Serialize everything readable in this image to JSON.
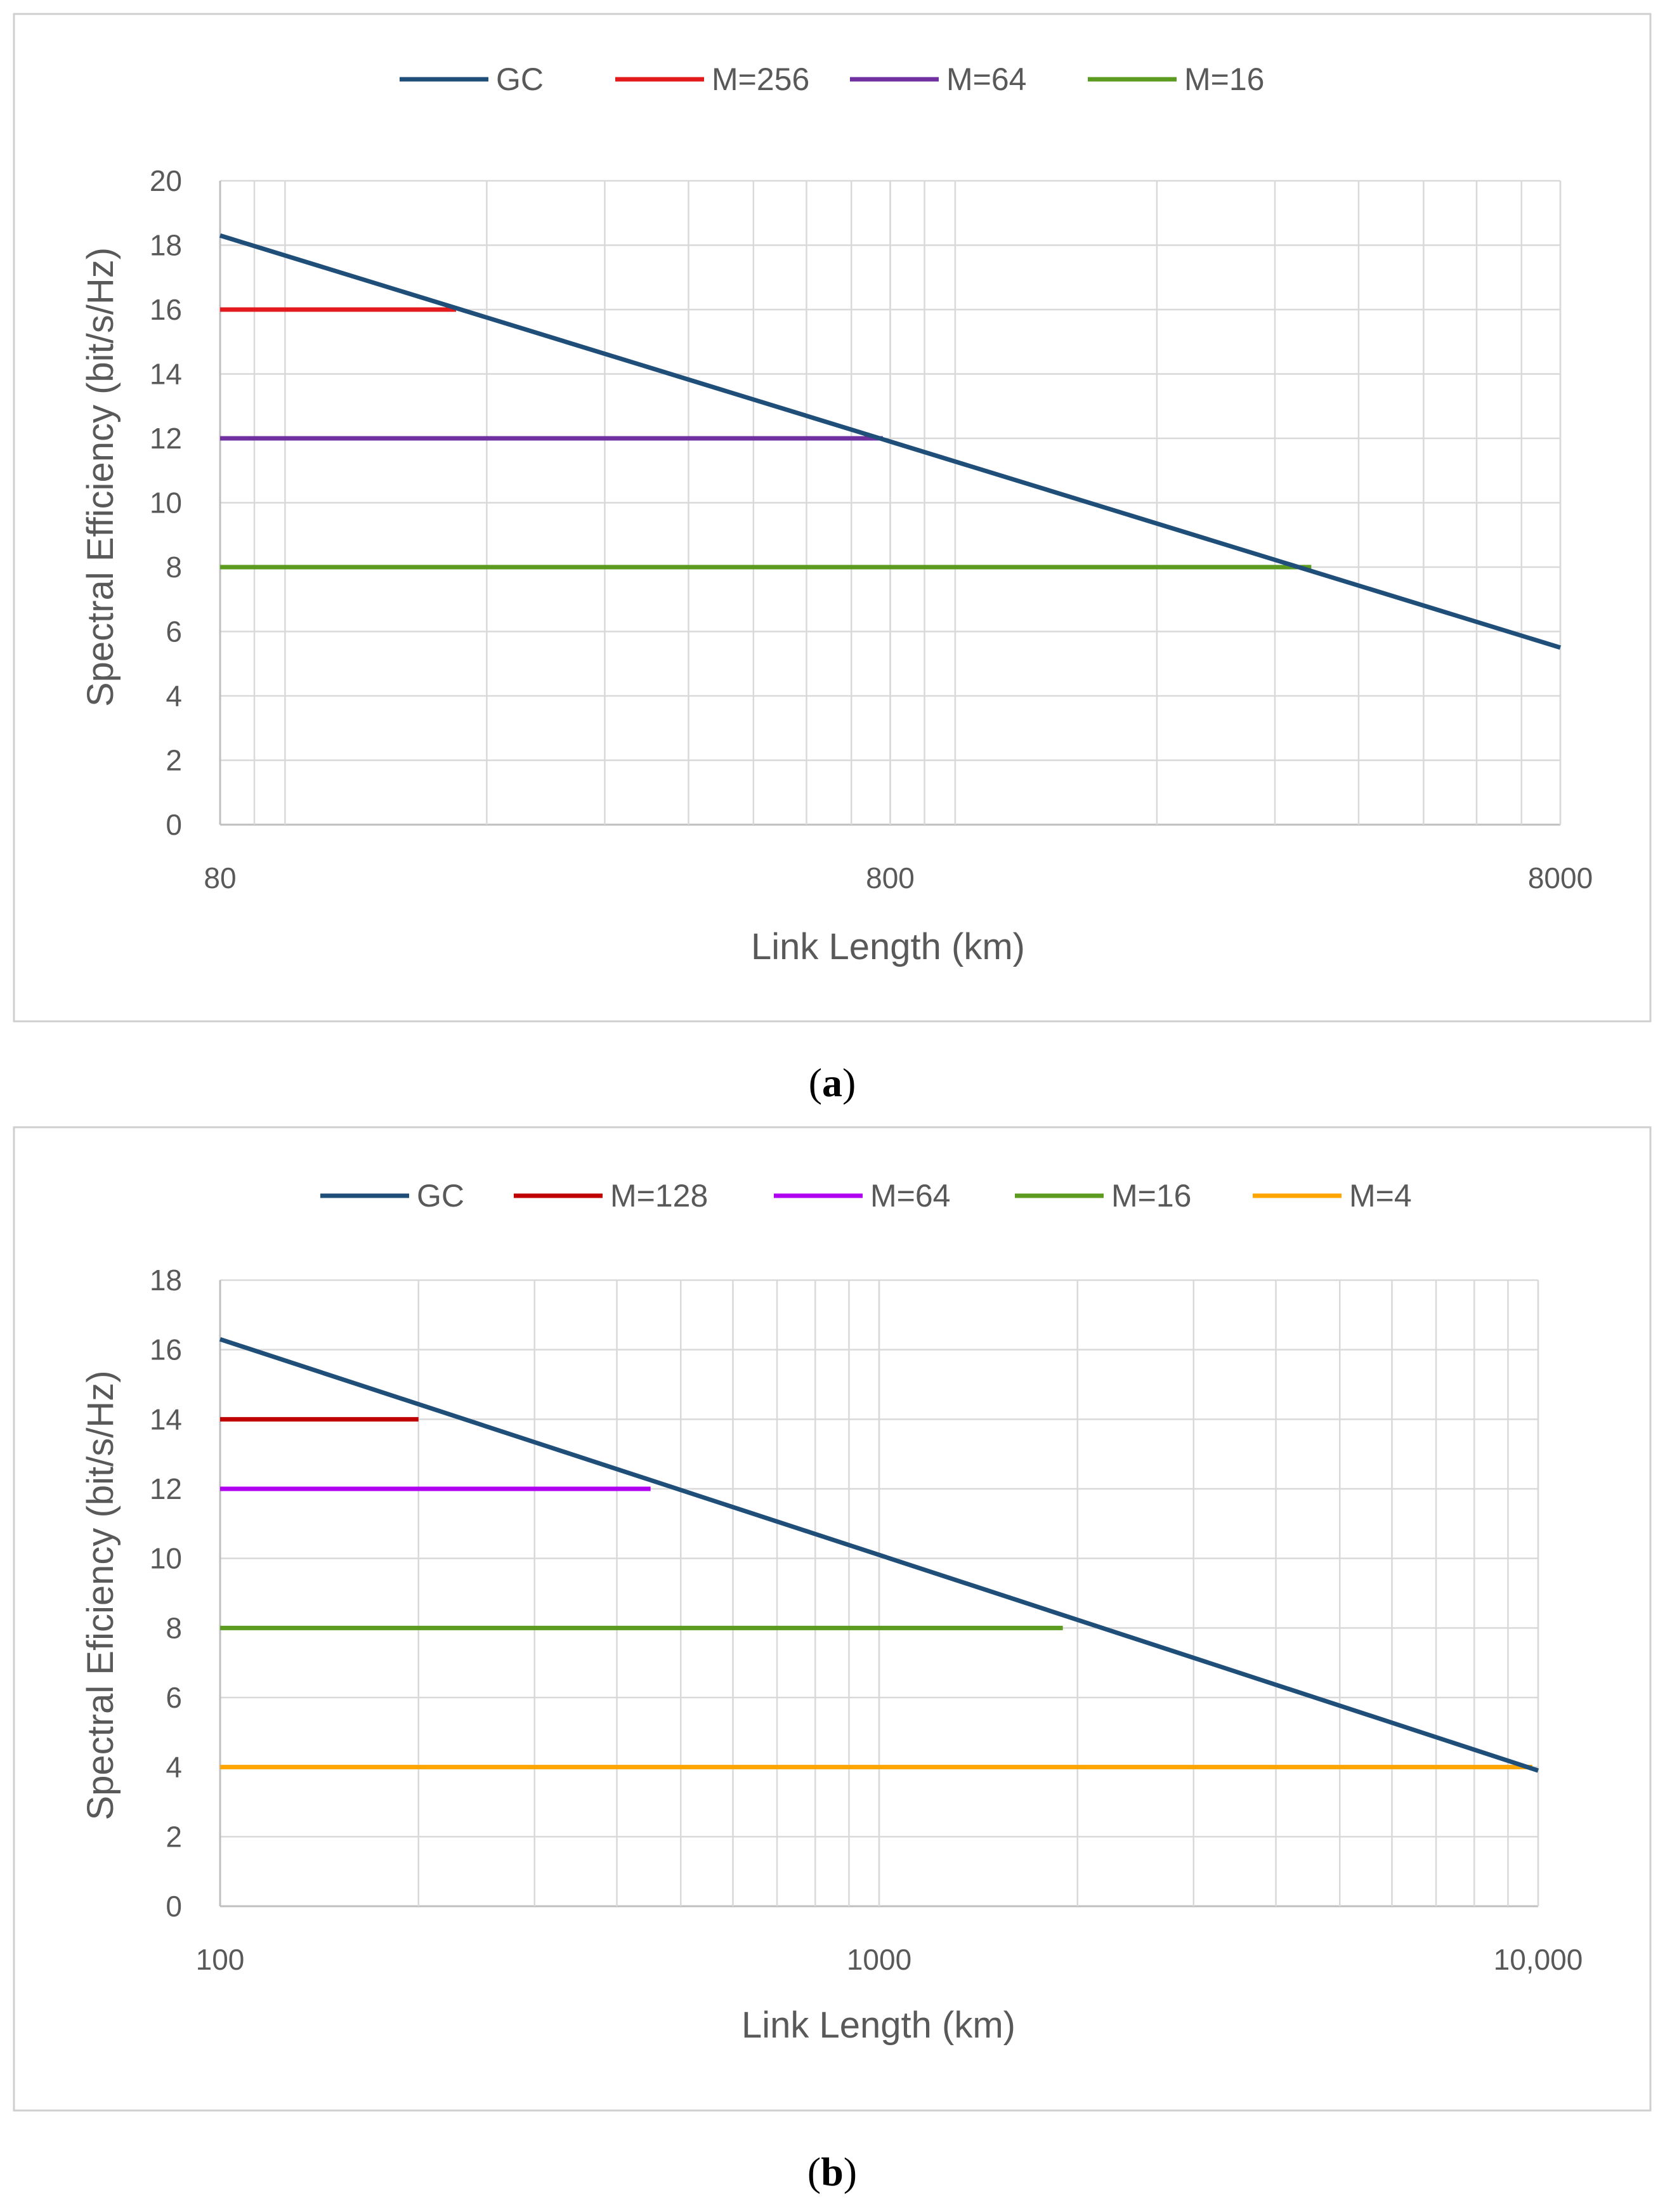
{
  "chart_data": [
    {
      "type": "line",
      "panel_label": "a",
      "xscale": "log",
      "xlim": [
        80,
        8000
      ],
      "ylim": [
        0,
        20
      ],
      "xticks": [
        "80",
        "800",
        "8000"
      ],
      "yticks": [
        "0",
        "2",
        "4",
        "6",
        "8",
        "10",
        "12",
        "14",
        "16",
        "18",
        "20"
      ],
      "xlabel": "Link Length (km)",
      "ylabel": "Spectral Efficiency (bit/s/Hz)",
      "legend_position": "top",
      "series": [
        {
          "name": "GC",
          "color": "#1f4e79",
          "x": [
            80,
            8000
          ],
          "y": [
            18.3,
            5.5
          ]
        },
        {
          "name": "M=256",
          "color": "#e31a1c",
          "x": [
            80,
            180
          ],
          "y": [
            16,
            16
          ]
        },
        {
          "name": "M=64",
          "color": "#7030a0",
          "x": [
            80,
            780
          ],
          "y": [
            12,
            12
          ]
        },
        {
          "name": "M=16",
          "color": "#5b9b1f",
          "x": [
            80,
            3400
          ],
          "y": [
            8,
            8
          ]
        }
      ]
    },
    {
      "type": "line",
      "panel_label": "b",
      "xscale": "log",
      "xlim": [
        100,
        10000
      ],
      "ylim": [
        0,
        18
      ],
      "xticks": [
        "100",
        "1000",
        "10,000"
      ],
      "yticks": [
        "0",
        "2",
        "4",
        "6",
        "8",
        "10",
        "12",
        "14",
        "16",
        "18"
      ],
      "xlabel": "Link Length (km)",
      "ylabel": "Spectral Eficiency (bit/s/Hz)",
      "legend_position": "top",
      "series": [
        {
          "name": "GC",
          "color": "#1f4e79",
          "x": [
            100,
            10000
          ],
          "y": [
            16.3,
            3.9
          ]
        },
        {
          "name": "M=128",
          "color": "#c00000",
          "x": [
            100,
            200
          ],
          "y": [
            14,
            14
          ]
        },
        {
          "name": "M=64",
          "color": "#b000f0",
          "x": [
            100,
            450
          ],
          "y": [
            12,
            12
          ]
        },
        {
          "name": "M=16",
          "color": "#5b9b1f",
          "x": [
            100,
            1900
          ],
          "y": [
            8,
            8
          ]
        },
        {
          "name": "M=4",
          "color": "#ffa500",
          "x": [
            100,
            9800
          ],
          "y": [
            4,
            4
          ]
        }
      ]
    }
  ]
}
